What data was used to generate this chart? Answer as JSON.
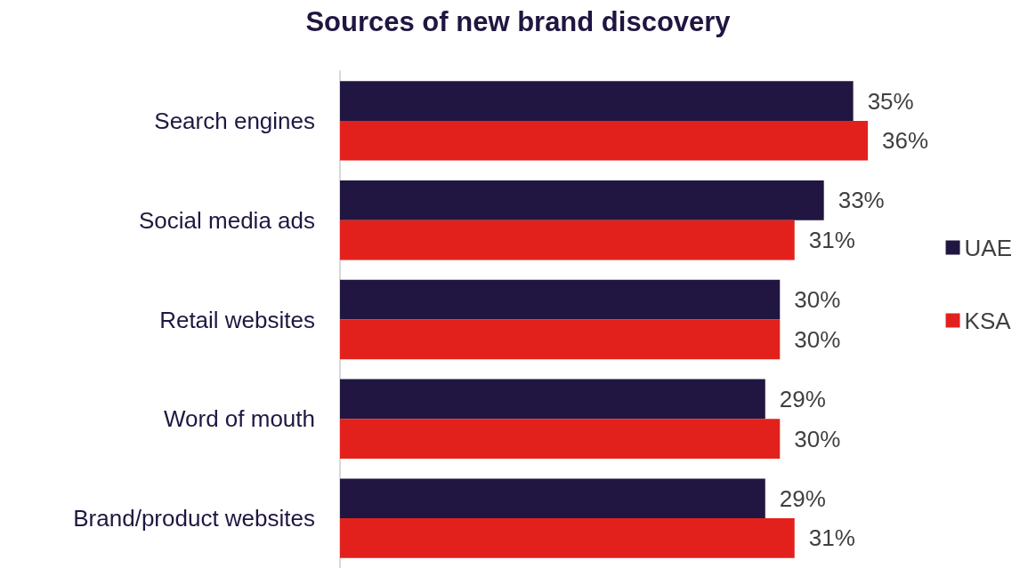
{
  "chart_data": {
    "type": "bar",
    "title": "Sources of new brand discovery",
    "orientation": "horizontal",
    "categories": [
      "Search engines",
      "Social media ads",
      "Retail websites",
      "Word of mouth",
      "Brand/product websites"
    ],
    "series": [
      {
        "name": "UAE",
        "color": "#201641",
        "values": [
          35,
          33,
          30,
          29,
          29
        ],
        "value_labels": [
          "35%",
          "33%",
          "30%",
          "29%",
          "29%"
        ]
      },
      {
        "name": "KSA",
        "color": "#e2211c",
        "values": [
          36,
          31,
          30,
          30,
          31
        ],
        "value_labels": [
          "36%",
          "31%",
          "30%",
          "30%",
          "31%"
        ]
      }
    ],
    "legend": "right"
  }
}
